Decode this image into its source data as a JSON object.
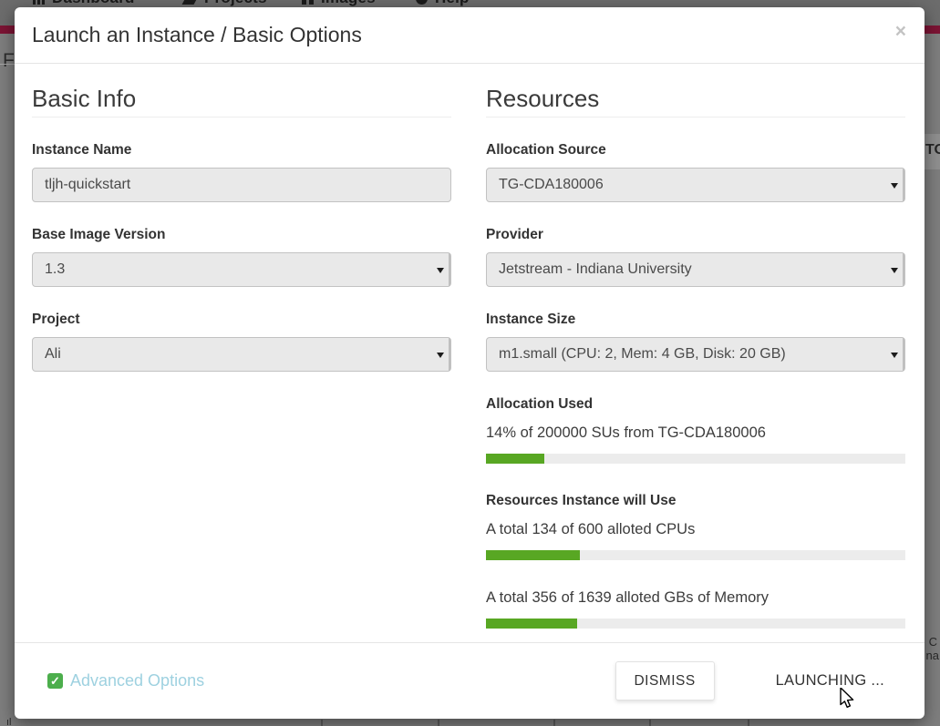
{
  "background": {
    "navbar": {
      "items": [
        {
          "label": "Dashboard",
          "icon": "dashboard-icon"
        },
        {
          "label": "Projects",
          "icon": "projects-icon"
        },
        {
          "label": "Images",
          "icon": "images-icon"
        },
        {
          "label": "Help",
          "icon": "help-icon"
        }
      ]
    },
    "fragments": {
      "left_text": "F",
      "right_text": "TO",
      "bottom_right_line1": "C",
      "bottom_right_line2": "na",
      "bottom_left_text": "ıl"
    }
  },
  "modal": {
    "title": "Launch an Instance / Basic Options",
    "close_icon": "×",
    "basic_info": {
      "heading": "Basic Info",
      "instance_name": {
        "label": "Instance Name",
        "value": "tljh-quickstart"
      },
      "base_image_version": {
        "label": "Base Image Version",
        "value": "1.3"
      },
      "project": {
        "label": "Project",
        "value": "Ali"
      }
    },
    "resources": {
      "heading": "Resources",
      "allocation_source": {
        "label": "Allocation Source",
        "value": "TG-CDA180006"
      },
      "provider": {
        "label": "Provider",
        "value": "Jetstream - Indiana University"
      },
      "instance_size": {
        "label": "Instance Size",
        "value": "m1.small (CPU: 2, Mem: 4 GB, Disk: 20 GB)"
      },
      "allocation_used": {
        "label": "Allocation Used",
        "detail": "14% of 200000 SUs from TG-CDA180006",
        "percent": 14
      },
      "instance_resources": {
        "label": "Resources Instance will Use",
        "cpu": {
          "detail": "A total 134 of 600 alloted CPUs",
          "percent": 22.3
        },
        "memory": {
          "detail": "A total 356 of 1639 alloted GBs of Memory",
          "percent": 21.7
        }
      }
    },
    "footer": {
      "advanced_options": "Advanced Options",
      "dismiss": "DISMISS",
      "launching": "LAUNCHING ..."
    }
  },
  "colors": {
    "progress_fill": "#58a723",
    "progress_track": "#ececec",
    "brand_red": "#7c1434",
    "link_teal": "#9ed1e0",
    "check_green": "#4cae4c",
    "spinner_teal": "#2f97ad"
  }
}
